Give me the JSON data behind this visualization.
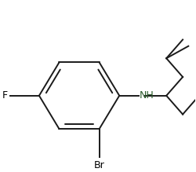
{
  "background": "#ffffff",
  "line_color": "#1a1a1a",
  "line_width": 1.4,
  "label_fontsize": 9,
  "label_color_F": "#000000",
  "label_color_Br": "#000000",
  "label_color_NH": "#2a5a2a",
  "figsize": [
    2.5,
    2.19
  ],
  "dpi": 100,
  "F_label": "F",
  "Br_label": "Br",
  "NH_label": "NH"
}
